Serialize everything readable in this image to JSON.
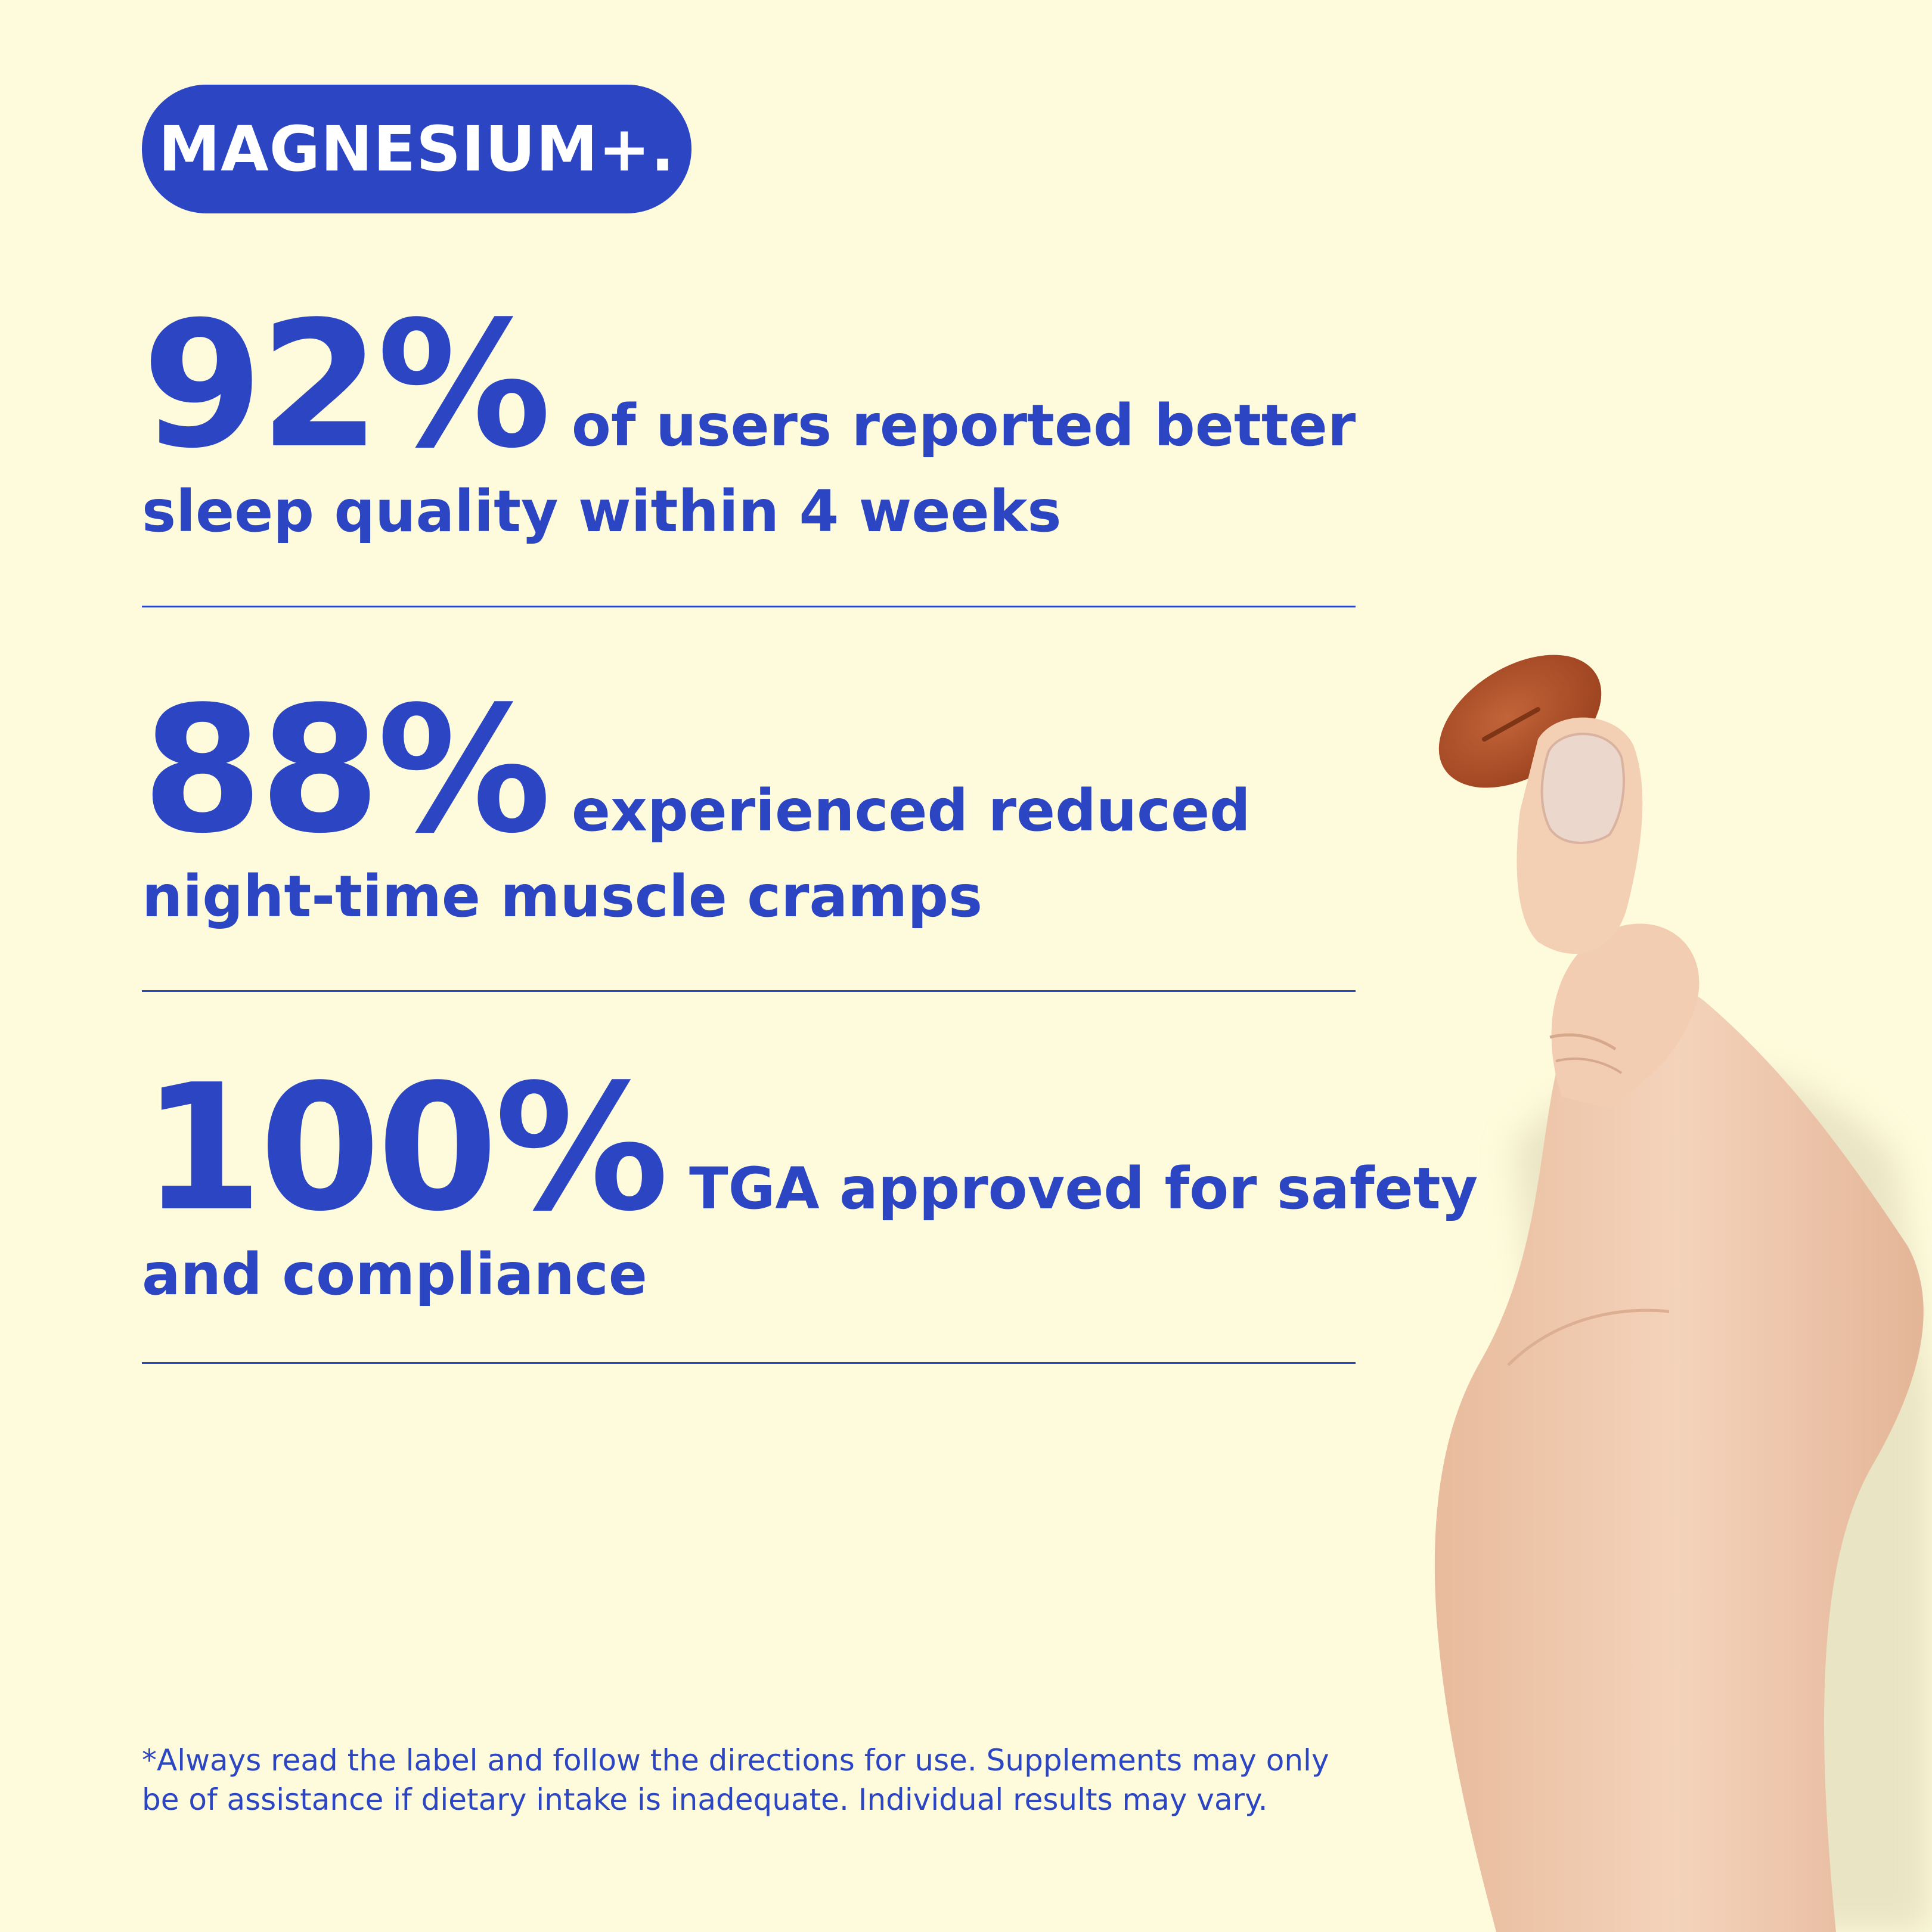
{
  "brand": {
    "label": "MAGNESIUM+."
  },
  "stats": [
    {
      "value": "92%",
      "text_line1": "of users reported better",
      "text_line2": "sleep quality within 4 weeks"
    },
    {
      "value": "88%",
      "text_line1": "experienced reduced",
      "text_line2": "night-time muscle cramps"
    },
    {
      "value": "100%",
      "text_line1": "TGA approved for safety",
      "text_line2": "and compliance"
    }
  ],
  "disclaimer": {
    "line1": "*Always read the label and follow the directions for use. Supplements may only",
    "line2": "be of assistance if dietary intake is inadequate. Individual results may vary."
  },
  "colors": {
    "background": "#fefbdc",
    "accent": "#2b45c3",
    "tablet": "#b3532c",
    "skin": "#f0c9ad"
  }
}
